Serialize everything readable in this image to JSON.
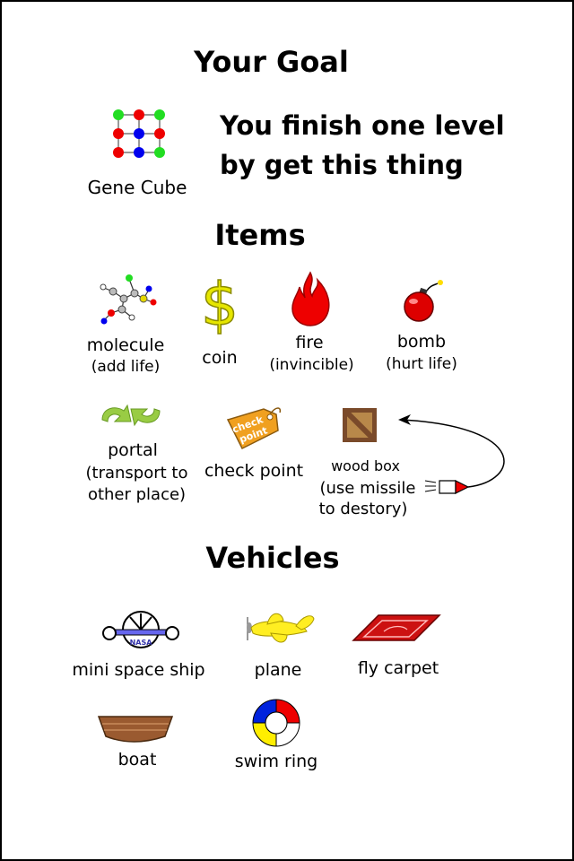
{
  "goal": {
    "heading": "Your Goal",
    "item_label": "Gene Cube",
    "line1": "You finish one level",
    "line2": "by get this thing",
    "icon": "gene-cube-icon"
  },
  "items": {
    "heading": "Items",
    "list": [
      {
        "name": "molecule",
        "desc": "(add life)",
        "icon": "molecule-icon"
      },
      {
        "name": "coin",
        "desc": "",
        "icon": "coin-icon"
      },
      {
        "name": "fire",
        "desc": "(invincible)",
        "icon": "fire-icon"
      },
      {
        "name": "bomb",
        "desc": "(hurt life)",
        "icon": "bomb-icon"
      },
      {
        "name": "portal",
        "desc1": "(transport to",
        "desc2": "other place)",
        "icon": "portal-icon"
      },
      {
        "name": "check point",
        "tag_text1": "check",
        "tag_text2": "point",
        "icon": "checkpoint-tag-icon"
      },
      {
        "name": "wood box",
        "desc1": "(use missile",
        "desc2": "to destory)",
        "icon": "wood-box-icon"
      }
    ]
  },
  "vehicles": {
    "heading": "Vehicles",
    "list": [
      {
        "name": "mini space ship",
        "badge": "NASA",
        "icon": "space-ship-icon"
      },
      {
        "name": "plane",
        "icon": "plane-icon"
      },
      {
        "name": "fly carpet",
        "icon": "carpet-icon"
      },
      {
        "name": "boat",
        "icon": "boat-icon"
      },
      {
        "name": "swim ring",
        "icon": "swim-ring-icon"
      }
    ]
  },
  "colors": {
    "red": "#ee0000",
    "green": "#22dd22",
    "blue": "#0000ee",
    "gold": "#e6d800",
    "wood": "#7a4a2a"
  }
}
